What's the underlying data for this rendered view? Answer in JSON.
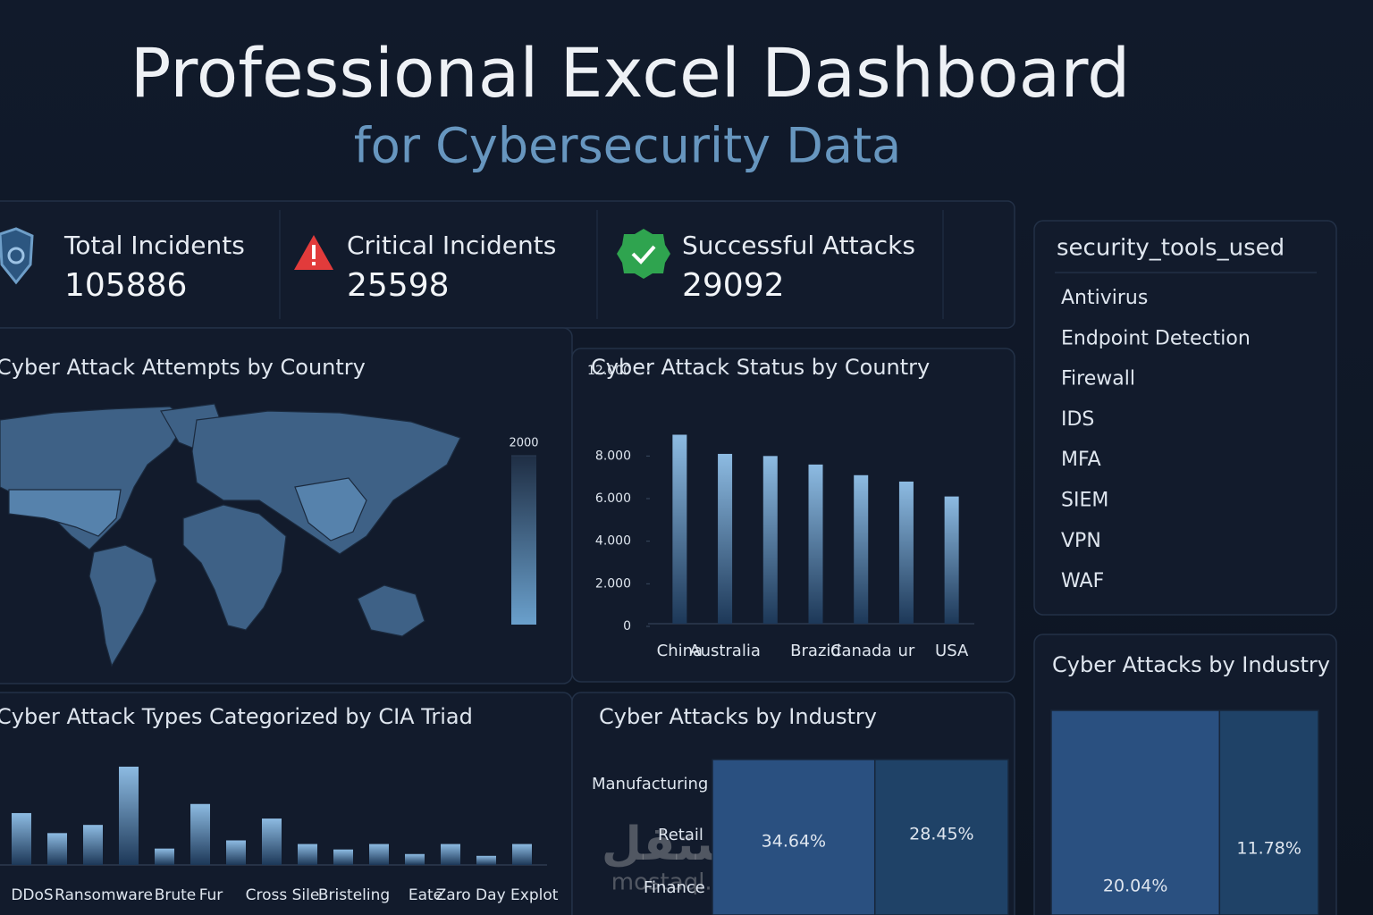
{
  "header": {
    "title": "Professional Excel Dashboard",
    "subtitle": "for Cybersecurity Data"
  },
  "kpis": [
    {
      "label": "Total Incidents",
      "value": 105886
    },
    {
      "label": "Critical Incidents",
      "value": 25598
    },
    {
      "label": "Successful Attacks",
      "value": 29092
    }
  ],
  "security_tools": {
    "title": "security_tools_used",
    "items": [
      "Antivirus",
      "Endpoint Detection",
      "Firewall",
      "IDS",
      "MFA",
      "SIEM",
      "VPN",
      "WAF"
    ]
  },
  "chart_data": [
    {
      "type": "map",
      "title": "Cyber Attack Attempts by Country",
      "colorbar_ticks": [
        2000
      ]
    },
    {
      "type": "bar",
      "title": "Cyber Attack Status by Country",
      "categories": [
        "China",
        "Australia",
        null,
        "Brazid",
        "Canada",
        "ur",
        "USA"
      ],
      "values": [
        9000,
        8100,
        8000,
        7600,
        7100,
        6800,
        6100
      ],
      "color": "#7fb0da",
      "ylim": [
        0,
        12000
      ],
      "yticks": [
        0,
        {
          "value": 2000,
          "label": "2.000"
        },
        {
          "value": 4000,
          "label": "4.000"
        },
        {
          "value": 6000,
          "label": "6.000"
        },
        {
          "value": 8000,
          "label": "8.000"
        },
        {
          "value": 12000,
          "label": "12.000"
        }
      ]
    },
    {
      "type": "bar",
      "title": "Cyber Attack Types Categorized by CIA Triad",
      "categories": [
        "DDoS",
        null,
        "Ransomware",
        null,
        "Brute",
        "Fur",
        null,
        "Cross Sile",
        null,
        "Bristeling",
        null,
        "Eate",
        null,
        "Zaro Day Explot",
        null
      ],
      "values": [
        57,
        35,
        44,
        108,
        18,
        67,
        27,
        51,
        23,
        17,
        23,
        12,
        23,
        10,
        23
      ],
      "color": "#6a9cc8"
    },
    {
      "type": "treemap",
      "title": "Cyber Attacks by Industry",
      "row_labels": [
        "Manufacturing",
        "Retail",
        "Finance"
      ],
      "values": [
        34.64,
        28.45
      ],
      "value_labels": [
        "34.64%",
        "28.45%"
      ],
      "colors": [
        "#2a5080",
        "#1f4267"
      ]
    },
    {
      "type": "treemap",
      "title": "Cyber Attacks by Industry",
      "values": [
        20.04,
        11.78
      ],
      "value_labels": [
        "20.04%",
        "11.78%"
      ],
      "colors": [
        "#2a5080",
        "#1f4267"
      ]
    }
  ],
  "watermark": {
    "arabic": "مستقل",
    "latin": "mostaql.com"
  }
}
